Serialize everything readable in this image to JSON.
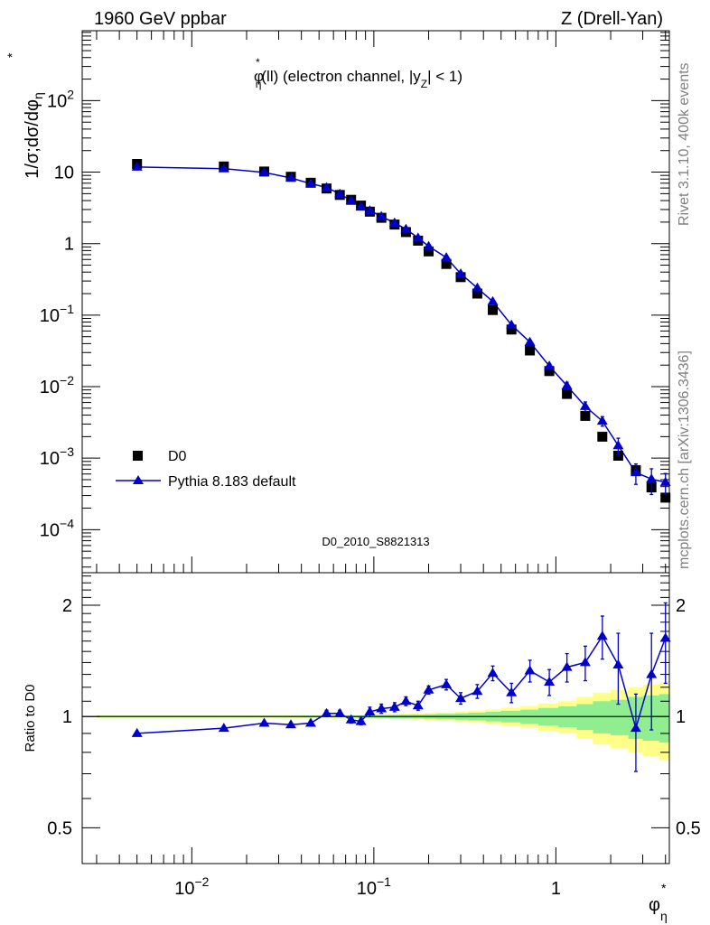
{
  "header": {
    "left": "1960 GeV ppbar",
    "right": "Z (Drell-Yan)"
  },
  "side_labels": {
    "rivet": "Rivet 3.1.10,  400k events",
    "mcplots": "mcplots.cern.ch [arXiv:1306.3436]"
  },
  "chart_data": {
    "type": "scatter",
    "title_parts": {
      "a": "φ",
      "b": "*",
      "c": "η",
      "d": "(ll) (electron channel, |y",
      "e": "Z",
      "f": "| < 1)"
    },
    "ylabel_main": "1/σ;dσ/dφ",
    "ylabel_ratio": "Ratio to D0",
    "xlabel": "φ",
    "xlabel_sup": "*",
    "xlabel_sub": "η",
    "analysis_id": "D0_2010_S8821313",
    "xscale": "log",
    "xlim": [
      0.0025,
      4.2
    ],
    "ylim_main": [
      2.5e-05,
      950
    ],
    "ylim_ratio": [
      0.4,
      2.45
    ],
    "xticks": [
      {
        "value": 0.01,
        "base": "10",
        "exp": "−2"
      },
      {
        "value": 0.1,
        "base": "10",
        "exp": "−1"
      },
      {
        "value": 1,
        "base": "1",
        "exp": ""
      }
    ],
    "yticks_main": [
      {
        "value": 100,
        "base": "10",
        "exp": "2"
      },
      {
        "value": 10,
        "base": "10",
        "exp": ""
      },
      {
        "value": 1,
        "base": "1",
        "exp": ""
      },
      {
        "value": 0.1,
        "base": "10",
        "exp": "−1"
      },
      {
        "value": 0.01,
        "base": "10",
        "exp": "−2"
      },
      {
        "value": 0.001,
        "base": "10",
        "exp": "−3"
      },
      {
        "value": 0.0001,
        "base": "10",
        "exp": "−4"
      }
    ],
    "yticks_ratio": [
      {
        "value": 2,
        "label": "2"
      },
      {
        "value": 1,
        "label": "1"
      },
      {
        "value": 0.5,
        "label": "0.5"
      }
    ],
    "legend": {
      "data": "D0",
      "mc": "Pythia 8.183 default",
      "position": "lower-left"
    },
    "colors": {
      "mc": "#0000cc",
      "band_inner": "#90ee90",
      "band_outer": "#ffff88",
      "data": "#000000"
    },
    "x": [
      0.005,
      0.015,
      0.025,
      0.035,
      0.045,
      0.055,
      0.065,
      0.075,
      0.085,
      0.095,
      0.11,
      0.13,
      0.15,
      0.175,
      0.2,
      0.25,
      0.3,
      0.37,
      0.45,
      0.57,
      0.72,
      0.92,
      1.15,
      1.45,
      1.8,
      2.2,
      2.75,
      3.35,
      4.0
    ],
    "x_edges": [
      0.003,
      0.01,
      0.02,
      0.03,
      0.04,
      0.05,
      0.06,
      0.07,
      0.08,
      0.09,
      0.1,
      0.12,
      0.14,
      0.16,
      0.19,
      0.22,
      0.28,
      0.33,
      0.41,
      0.5,
      0.64,
      0.8,
      1.03,
      1.3,
      1.6,
      2.0,
      2.5,
      3.0,
      3.7,
      4.2
    ],
    "series": [
      {
        "name": "D0",
        "values": [
          13.0,
          12.0,
          10.2,
          8.6,
          7.1,
          5.9,
          4.8,
          4.1,
          3.4,
          2.8,
          2.3,
          1.85,
          1.45,
          1.1,
          0.78,
          0.52,
          0.34,
          0.2,
          0.118,
          0.063,
          0.032,
          0.0165,
          0.0079,
          0.0039,
          0.002,
          0.00108,
          0.00068,
          0.00039,
          0.00028
        ]
      },
      {
        "name": "Pythia 8.183 default",
        "values": [
          11.8,
          11.2,
          9.9,
          8.3,
          6.9,
          6.1,
          4.95,
          4.0,
          3.3,
          2.9,
          2.4,
          1.95,
          1.6,
          1.2,
          0.92,
          0.64,
          0.38,
          0.24,
          0.155,
          0.073,
          0.042,
          0.0195,
          0.0103,
          0.0053,
          0.0033,
          0.0015,
          0.00063,
          0.00051,
          0.00046
        ]
      }
    ],
    "mc_errors_main": [
      0,
      0,
      0,
      0,
      0,
      0,
      0,
      0,
      0,
      0,
      0,
      0,
      0,
      0,
      0,
      0,
      0,
      0,
      0,
      0,
      0,
      0.0015,
      0.0012,
      0.0008,
      0.0005,
      0.0004,
      0.0002,
      0.0002,
      0.00015
    ],
    "ratio": [
      0.9,
      0.93,
      0.96,
      0.95,
      0.96,
      1.02,
      1.02,
      0.98,
      0.97,
      1.03,
      1.05,
      1.06,
      1.1,
      1.07,
      1.18,
      1.22,
      1.12,
      1.17,
      1.31,
      1.16,
      1.33,
      1.24,
      1.36,
      1.4,
      1.65,
      1.38,
      0.93,
      1.3,
      1.63
    ],
    "ratio_errors": [
      0,
      0,
      0,
      0,
      0,
      0.02,
      0.02,
      0.02,
      0.02,
      0.03,
      0.03,
      0.03,
      0.03,
      0.03,
      0.03,
      0.04,
      0.04,
      0.05,
      0.06,
      0.07,
      0.09,
      0.1,
      0.12,
      0.15,
      0.22,
      0.3,
      0.22,
      0.38,
      0.4
    ],
    "band_inner": [
      0.005,
      0.005,
      0.005,
      0.005,
      0.006,
      0.006,
      0.006,
      0.007,
      0.007,
      0.008,
      0.009,
      0.01,
      0.011,
      0.012,
      0.014,
      0.017,
      0.02,
      0.024,
      0.03,
      0.036,
      0.044,
      0.055,
      0.065,
      0.08,
      0.1,
      0.11,
      0.13,
      0.14,
      0.15
    ],
    "band_outer": [
      0.008,
      0.008,
      0.008,
      0.009,
      0.009,
      0.01,
      0.01,
      0.011,
      0.011,
      0.012,
      0.014,
      0.015,
      0.017,
      0.019,
      0.022,
      0.026,
      0.031,
      0.038,
      0.046,
      0.056,
      0.068,
      0.085,
      0.1,
      0.13,
      0.16,
      0.18,
      0.2,
      0.22,
      0.24
    ]
  }
}
